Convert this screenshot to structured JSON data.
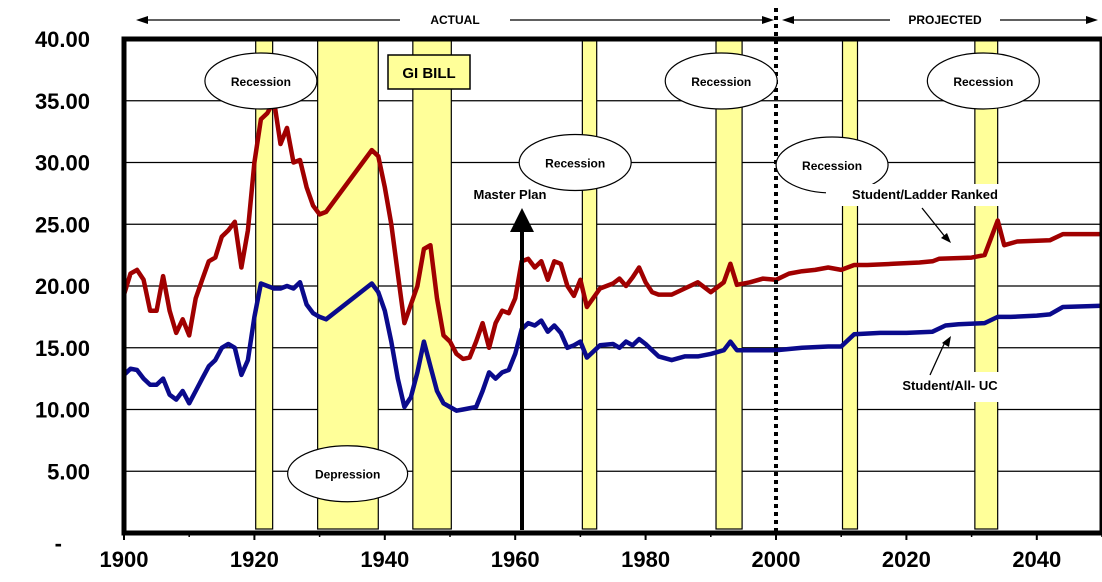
{
  "chart_data": {
    "type": "line",
    "header": {
      "actual": "ACTUAL",
      "projected": "PROJECTED"
    },
    "x_ticks": [
      "1900",
      "1920",
      "1940",
      "1960",
      "1980",
      "2000",
      "2020",
      "2040"
    ],
    "y_ticks": [
      "-",
      "5.00",
      "10.00",
      "15.00",
      "20.00",
      "25.00",
      "30.00",
      "35.00",
      "40.00"
    ],
    "ylim": [
      0,
      40
    ],
    "xlim": [
      1900,
      2050
    ],
    "grid": true,
    "projection_start_year": 2000,
    "series": [
      {
        "name": "Student/Ladder Ranked",
        "color": "#a00000",
        "points": [
          [
            1900,
            19.3
          ],
          [
            1901,
            21
          ],
          [
            1902,
            21.3
          ],
          [
            1903,
            20.5
          ],
          [
            1904,
            18
          ],
          [
            1905,
            18
          ],
          [
            1906,
            20.8
          ],
          [
            1907,
            18
          ],
          [
            1908,
            16.2
          ],
          [
            1909,
            17.3
          ],
          [
            1910,
            16
          ],
          [
            1911,
            19
          ],
          [
            1912,
            20.5
          ],
          [
            1913,
            22
          ],
          [
            1914,
            22.3
          ],
          [
            1915,
            24
          ],
          [
            1916,
            24.5
          ],
          [
            1917,
            25.2
          ],
          [
            1918,
            21.5
          ],
          [
            1919,
            24.5
          ],
          [
            1920,
            30
          ],
          [
            1921,
            33.5
          ],
          [
            1922,
            34
          ],
          [
            1923,
            35
          ],
          [
            1924,
            31.5
          ],
          [
            1925,
            32.8
          ],
          [
            1926,
            30
          ],
          [
            1927,
            30.2
          ],
          [
            1928,
            28
          ],
          [
            1929,
            26.5
          ],
          [
            1930,
            25.8
          ],
          [
            1931,
            26
          ],
          [
            1938,
            31
          ],
          [
            1939,
            30.5
          ],
          [
            1940,
            28
          ],
          [
            1941,
            25
          ],
          [
            1942,
            21
          ],
          [
            1943,
            17
          ],
          [
            1944,
            18.5
          ],
          [
            1945,
            20
          ],
          [
            1946,
            23
          ],
          [
            1947,
            23.3
          ],
          [
            1948,
            19
          ],
          [
            1949,
            16
          ],
          [
            1950,
            15.5
          ],
          [
            1951,
            14.5
          ],
          [
            1952,
            14.1
          ],
          [
            1953,
            14.2
          ],
          [
            1954,
            15.5
          ],
          [
            1955,
            17
          ],
          [
            1956,
            15
          ],
          [
            1957,
            17
          ],
          [
            1958,
            18
          ],
          [
            1959,
            17.8
          ],
          [
            1960,
            19
          ],
          [
            1961,
            22
          ],
          [
            1962,
            22.2
          ],
          [
            1963,
            21.5
          ],
          [
            1964,
            22
          ],
          [
            1965,
            20.5
          ],
          [
            1966,
            22
          ],
          [
            1967,
            21.8
          ],
          [
            1968,
            20
          ],
          [
            1969,
            19.2
          ],
          [
            1970,
            20.5
          ],
          [
            1971,
            18.3
          ],
          [
            1973,
            19.8
          ],
          [
            1974,
            20
          ],
          [
            1975,
            20.2
          ],
          [
            1976,
            20.6
          ],
          [
            1977,
            20
          ],
          [
            1978,
            20.7
          ],
          [
            1979,
            21.5
          ],
          [
            1980,
            20.3
          ],
          [
            1981,
            19.5
          ],
          [
            1982,
            19.3
          ],
          [
            1984,
            19.3
          ],
          [
            1986,
            19.8
          ],
          [
            1988,
            20.3
          ],
          [
            1990,
            19.5
          ],
          [
            1992,
            20.3
          ],
          [
            1993,
            21.8
          ],
          [
            1994,
            20.1
          ],
          [
            1996,
            20.3
          ],
          [
            1998,
            20.6
          ],
          [
            2000,
            20.5
          ],
          [
            2002,
            21
          ],
          [
            2004,
            21.2
          ],
          [
            2006,
            21.3
          ],
          [
            2008,
            21.5
          ],
          [
            2010,
            21.3
          ],
          [
            2012,
            21.7
          ],
          [
            2014,
            21.7
          ],
          [
            2018,
            21.8
          ],
          [
            2022,
            21.9
          ],
          [
            2024,
            22
          ],
          [
            2025,
            22.2
          ],
          [
            2030,
            22.3
          ],
          [
            2032,
            22.5
          ],
          [
            2034,
            25.3
          ],
          [
            2035,
            23.3
          ],
          [
            2037,
            23.6
          ],
          [
            2042,
            23.7
          ],
          [
            2044,
            24.2
          ],
          [
            2050,
            24.2
          ]
        ]
      },
      {
        "name": "Student/All- UC",
        "color": "#0a0a8c",
        "points": [
          [
            1900,
            12.8
          ],
          [
            1901,
            13.3
          ],
          [
            1902,
            13.2
          ],
          [
            1903,
            12.5
          ],
          [
            1904,
            12
          ],
          [
            1905,
            12
          ],
          [
            1906,
            12.5
          ],
          [
            1907,
            11.2
          ],
          [
            1908,
            10.8
          ],
          [
            1909,
            11.5
          ],
          [
            1910,
            10.5
          ],
          [
            1911,
            11.5
          ],
          [
            1912,
            12.5
          ],
          [
            1913,
            13.5
          ],
          [
            1914,
            14
          ],
          [
            1915,
            15
          ],
          [
            1916,
            15.3
          ],
          [
            1917,
            15
          ],
          [
            1918,
            12.8
          ],
          [
            1919,
            14
          ],
          [
            1920,
            17.5
          ],
          [
            1921,
            20.2
          ],
          [
            1922,
            20
          ],
          [
            1923,
            19.8
          ],
          [
            1924,
            19.8
          ],
          [
            1925,
            20
          ],
          [
            1926,
            19.8
          ],
          [
            1927,
            20.3
          ],
          [
            1928,
            18.5
          ],
          [
            1929,
            17.8
          ],
          [
            1930,
            17.5
          ],
          [
            1931,
            17.3
          ],
          [
            1938,
            20.2
          ],
          [
            1939,
            19.5
          ],
          [
            1940,
            18
          ],
          [
            1941,
            15.5
          ],
          [
            1942,
            12.5
          ],
          [
            1943,
            10.2
          ],
          [
            1944,
            11
          ],
          [
            1945,
            13
          ],
          [
            1946,
            15.5
          ],
          [
            1947,
            13.5
          ],
          [
            1948,
            11.5
          ],
          [
            1949,
            10.5
          ],
          [
            1950,
            10.2
          ],
          [
            1951,
            9.9
          ],
          [
            1952,
            10
          ],
          [
            1954,
            10.2
          ],
          [
            1955,
            11.5
          ],
          [
            1956,
            13
          ],
          [
            1957,
            12.5
          ],
          [
            1958,
            13
          ],
          [
            1959,
            13.2
          ],
          [
            1960,
            14.5
          ],
          [
            1961,
            16.5
          ],
          [
            1962,
            17
          ],
          [
            1963,
            16.8
          ],
          [
            1964,
            17.2
          ],
          [
            1965,
            16.3
          ],
          [
            1966,
            16.8
          ],
          [
            1967,
            16.2
          ],
          [
            1968,
            15
          ],
          [
            1969,
            15.2
          ],
          [
            1970,
            15.5
          ],
          [
            1971,
            14.2
          ],
          [
            1973,
            15.2
          ],
          [
            1975,
            15.3
          ],
          [
            1976,
            15
          ],
          [
            1977,
            15.5
          ],
          [
            1978,
            15.2
          ],
          [
            1979,
            15.7
          ],
          [
            1980,
            15.3
          ],
          [
            1981,
            14.8
          ],
          [
            1982,
            14.3
          ],
          [
            1984,
            14
          ],
          [
            1986,
            14.3
          ],
          [
            1988,
            14.3
          ],
          [
            1990,
            14.5
          ],
          [
            1992,
            14.8
          ],
          [
            1993,
            15.5
          ],
          [
            1994,
            14.8
          ],
          [
            1996,
            14.8
          ],
          [
            2000,
            14.8
          ],
          [
            2002,
            14.9
          ],
          [
            2004,
            15
          ],
          [
            2008,
            15.1
          ],
          [
            2010,
            15.1
          ],
          [
            2012,
            16.1
          ],
          [
            2016,
            16.2
          ],
          [
            2020,
            16.2
          ],
          [
            2024,
            16.3
          ],
          [
            2026,
            16.8
          ],
          [
            2028,
            16.9
          ],
          [
            2032,
            17
          ],
          [
            2034,
            17.5
          ],
          [
            2036,
            17.5
          ],
          [
            2040,
            17.6
          ],
          [
            2042,
            17.7
          ],
          [
            2044,
            18.3
          ],
          [
            2050,
            18.4
          ]
        ]
      }
    ],
    "bands": [
      {
        "start": 1920.2,
        "end": 1922.8
      },
      {
        "start": 1929.7,
        "end": 1939.0
      },
      {
        "start": 1944.3,
        "end": 1950.2
      },
      {
        "start": 1970.3,
        "end": 1972.5
      },
      {
        "start": 1990.8,
        "end": 1994.8
      },
      {
        "start": 2010.2,
        "end": 2012.5
      },
      {
        "start": 2030.5,
        "end": 2034.0
      }
    ],
    "annotations": [
      {
        "text": "Recession",
        "x": 1921,
        "y": 36.6
      },
      {
        "text": "Depression",
        "x": 1934.3,
        "y": 4.8
      },
      {
        "text": "Recession",
        "x": 1969.2,
        "y": 30.0
      },
      {
        "text": "Recession",
        "x": 1991.6,
        "y": 36.6
      },
      {
        "text": "Recession",
        "x": 2008.6,
        "y": 29.8
      },
      {
        "text": "Recession",
        "x": 2031.8,
        "y": 36.6
      }
    ],
    "callouts": {
      "gi_bill": "GI BILL",
      "master_plan": "Master Plan",
      "series_label_1": "Student/Ladder Ranked",
      "series_label_2": "Student/All- UC"
    }
  }
}
